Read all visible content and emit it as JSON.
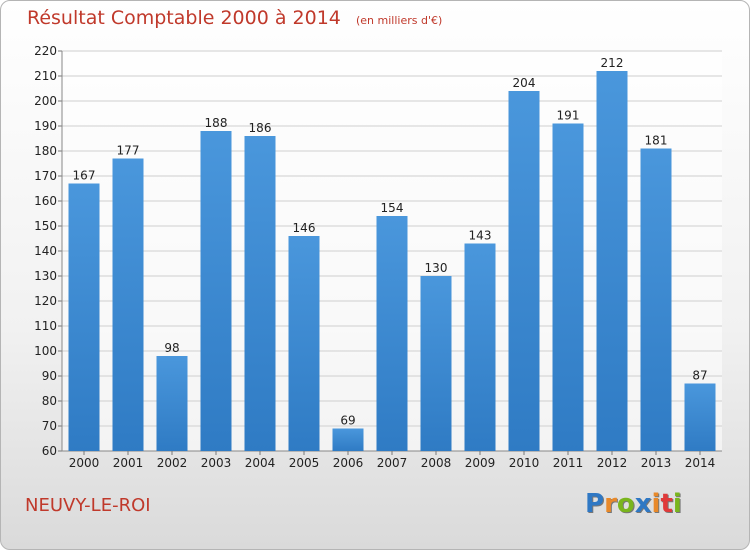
{
  "title": "Résultat Comptable 2000 à 2014",
  "subtitle": "(en milliers d'€)",
  "place": "NEUVY-LE-ROI",
  "brand": {
    "name": "Proxiti",
    "letters": [
      "P",
      "r",
      "o",
      "x",
      "i",
      "t",
      "i"
    ],
    "colors": [
      "#2f78c4",
      "#e8892a",
      "#7ab51d",
      "#2f78c4",
      "#e8892a",
      "#e03a3a",
      "#7ab51d"
    ]
  },
  "colors": {
    "bar": "#4a97dc",
    "bar_dark": "#2f7bc4",
    "title": "#c0392b"
  },
  "chart_data": {
    "type": "bar",
    "title": "Résultat Comptable 2000 à 2014",
    "categories": [
      "2000",
      "2001",
      "2002",
      "2003",
      "2004",
      "2005",
      "2006",
      "2007",
      "2008",
      "2009",
      "2010",
      "2011",
      "2012",
      "2013",
      "2014"
    ],
    "values": [
      167,
      177,
      98,
      188,
      186,
      146,
      69,
      154,
      130,
      143,
      204,
      191,
      212,
      181,
      87
    ],
    "ylim": [
      60,
      220
    ],
    "yticks": [
      60,
      70,
      80,
      90,
      100,
      110,
      120,
      130,
      140,
      150,
      160,
      170,
      180,
      190,
      200,
      210,
      220
    ],
    "grid": true
  }
}
